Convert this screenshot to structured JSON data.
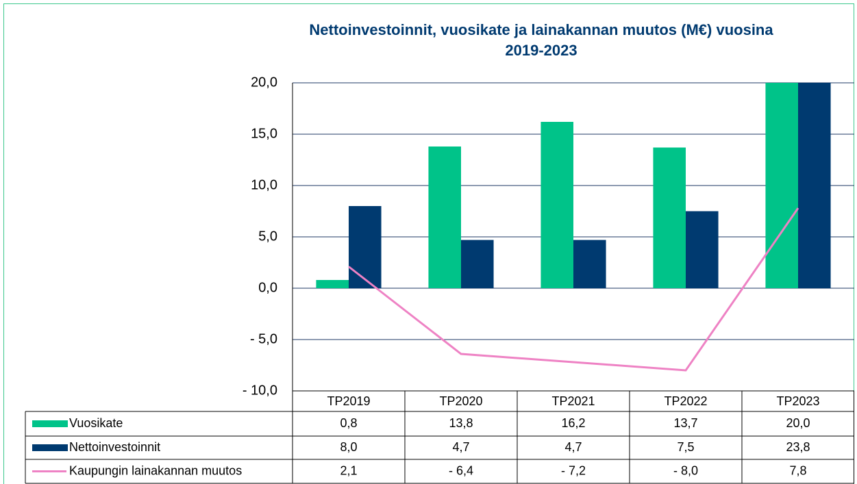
{
  "chart_data": {
    "type": "bar",
    "title": "Nettoinvestoinnit, vuosikate ja lainakannan muutos (M€) vuosina 2019-2023",
    "categories": [
      "TP2019",
      "TP2020",
      "TP2021",
      "TP2022",
      "TP2023"
    ],
    "series": [
      {
        "name": "Vuosikate",
        "type": "bar",
        "color": "#00c389",
        "values": [
          0.8,
          13.8,
          16.2,
          13.7,
          20.0
        ],
        "value_labels": [
          "0,8",
          "13,8",
          "16,2",
          "13,7",
          "20,0"
        ]
      },
      {
        "name": "Nettoinvestoinnit",
        "type": "bar",
        "color": "#003a70",
        "values": [
          8.0,
          4.7,
          4.7,
          7.5,
          23.8
        ],
        "value_labels": [
          "8,0",
          "4,7",
          "4,7",
          "7,5",
          "23,8"
        ]
      },
      {
        "name": "Kaupungin lainakannan muutos",
        "type": "line",
        "color": "#ee82c4",
        "values": [
          2.1,
          -6.4,
          -7.2,
          -8.0,
          7.8
        ],
        "value_labels": [
          "2,1",
          "- 6,4",
          "- 7,2",
          "- 8,0",
          "7,8"
        ]
      }
    ],
    "ylim": [
      -10,
      20
    ],
    "yticks": [
      {
        "value": -10,
        "label": "- 10,0"
      },
      {
        "value": -5,
        "label": "- 5,0"
      },
      {
        "value": 0,
        "label": "0,0"
      },
      {
        "value": 5,
        "label": "5,0"
      },
      {
        "value": 10,
        "label": "10,0"
      },
      {
        "value": 15,
        "label": "15,0"
      },
      {
        "value": 20,
        "label": "20,0"
      }
    ],
    "grid": true,
    "legend": "data-table"
  }
}
